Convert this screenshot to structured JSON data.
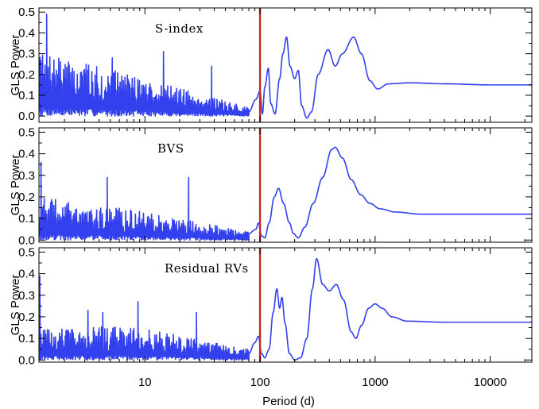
{
  "chart_data": {
    "type": "line",
    "xlabel": "Period (d)",
    "ylabel": "GLS Power",
    "x_scale": "log",
    "xlim": [
      1.2,
      23000
    ],
    "x_ticks": [
      10,
      100,
      1000,
      10000
    ],
    "x_tick_labels": [
      "10",
      "100",
      "1000",
      "10000"
    ],
    "marker_period": 100,
    "colors": {
      "series": "#3340ee",
      "marker": "#c8281e",
      "axes": "#000000"
    },
    "panels": [
      {
        "label": "S-index",
        "ylim": [
          -0.03,
          0.52
        ],
        "y_ticks": [
          0.0,
          0.1,
          0.2,
          0.3,
          0.4,
          0.5
        ],
        "y_tick_labels": [
          "0.0",
          "0.1",
          "0.2",
          "0.3",
          "0.4",
          "0.5"
        ],
        "noise": {
          "start": 0.3,
          "mid": 0.2,
          "end": 0.04,
          "seed": 7
        },
        "spikes": [
          [
            1.4,
            0.49
          ],
          [
            14.5,
            0.31
          ],
          [
            38,
            0.24
          ],
          [
            5.2,
            0.28
          ]
        ],
        "points": [
          [
            80,
            0.02
          ],
          [
            92,
            0.08
          ],
          [
            100,
            0.12
          ],
          [
            105,
            0.01
          ],
          [
            110,
            0.14
          ],
          [
            118,
            0.23
          ],
          [
            124,
            0.06
          ],
          [
            135,
            0.01
          ],
          [
            148,
            0.18
          ],
          [
            158,
            0.3
          ],
          [
            170,
            0.38
          ],
          [
            182,
            0.24
          ],
          [
            200,
            0.18
          ],
          [
            215,
            0.22
          ],
          [
            230,
            0.05
          ],
          [
            255,
            -0.01
          ],
          [
            280,
            0.02
          ],
          [
            320,
            0.2
          ],
          [
            390,
            0.32
          ],
          [
            450,
            0.24
          ],
          [
            520,
            0.3
          ],
          [
            650,
            0.38
          ],
          [
            760,
            0.3
          ],
          [
            900,
            0.17
          ],
          [
            1050,
            0.13
          ],
          [
            1300,
            0.155
          ],
          [
            2000,
            0.16
          ],
          [
            4000,
            0.155
          ],
          [
            10000,
            0.15
          ],
          [
            23000,
            0.15
          ]
        ]
      },
      {
        "label": "BVS",
        "ylim": [
          -0.01,
          0.52
        ],
        "y_ticks": [
          0.0,
          0.1,
          0.2,
          0.3,
          0.4,
          0.5
        ],
        "y_tick_labels": [
          "0.0",
          "0.1",
          "0.2",
          "0.3",
          "0.4",
          "0.5"
        ],
        "noise": {
          "start": 0.2,
          "mid": 0.14,
          "end": 0.04,
          "seed": 19
        },
        "spikes": [
          [
            1.25,
            0.36
          ],
          [
            4.7,
            0.29
          ],
          [
            24,
            0.29
          ]
        ],
        "points": [
          [
            80,
            0.03
          ],
          [
            92,
            0.05
          ],
          [
            97,
            0.08
          ],
          [
            103,
            0.02
          ],
          [
            110,
            0.01
          ],
          [
            120,
            0.08
          ],
          [
            133,
            0.2
          ],
          [
            145,
            0.24
          ],
          [
            160,
            0.17
          ],
          [
            180,
            0.08
          ],
          [
            195,
            0.03
          ],
          [
            215,
            0.01
          ],
          [
            245,
            0.06
          ],
          [
            290,
            0.17
          ],
          [
            350,
            0.29
          ],
          [
            420,
            0.42
          ],
          [
            450,
            0.43
          ],
          [
            520,
            0.38
          ],
          [
            620,
            0.28
          ],
          [
            750,
            0.21
          ],
          [
            900,
            0.17
          ],
          [
            1100,
            0.145
          ],
          [
            1500,
            0.13
          ],
          [
            2500,
            0.12
          ],
          [
            6000,
            0.12
          ],
          [
            23000,
            0.12
          ]
        ]
      },
      {
        "label": "Residual RVs",
        "ylim": [
          -0.01,
          0.52
        ],
        "y_ticks": [
          0.0,
          0.1,
          0.2,
          0.3,
          0.4,
          0.5
        ],
        "y_tick_labels": [
          "0.0",
          "0.1",
          "0.2",
          "0.3",
          "0.4",
          "0.5"
        ],
        "noise": {
          "start": 0.14,
          "mid": 0.16,
          "end": 0.05,
          "seed": 31
        },
        "spikes": [
          [
            1.22,
            0.39
          ],
          [
            3.2,
            0.23
          ],
          [
            8.7,
            0.27
          ],
          [
            28,
            0.22
          ],
          [
            4.3,
            0.22
          ]
        ],
        "points": [
          [
            80,
            0.03
          ],
          [
            90,
            0.08
          ],
          [
            97,
            0.11
          ],
          [
            103,
            0.03
          ],
          [
            110,
            0.01
          ],
          [
            120,
            0.05
          ],
          [
            130,
            0.22
          ],
          [
            140,
            0.33
          ],
          [
            148,
            0.24
          ],
          [
            155,
            0.29
          ],
          [
            165,
            0.17
          ],
          [
            180,
            0.03
          ],
          [
            200,
            0.0
          ],
          [
            225,
            0.01
          ],
          [
            255,
            0.1
          ],
          [
            285,
            0.33
          ],
          [
            310,
            0.47
          ],
          [
            350,
            0.35
          ],
          [
            400,
            0.32
          ],
          [
            460,
            0.35
          ],
          [
            530,
            0.28
          ],
          [
            620,
            0.13
          ],
          [
            680,
            0.1
          ],
          [
            760,
            0.16
          ],
          [
            880,
            0.24
          ],
          [
            1000,
            0.26
          ],
          [
            1150,
            0.24
          ],
          [
            1400,
            0.2
          ],
          [
            1900,
            0.18
          ],
          [
            4000,
            0.175
          ],
          [
            23000,
            0.175
          ]
        ]
      }
    ]
  }
}
